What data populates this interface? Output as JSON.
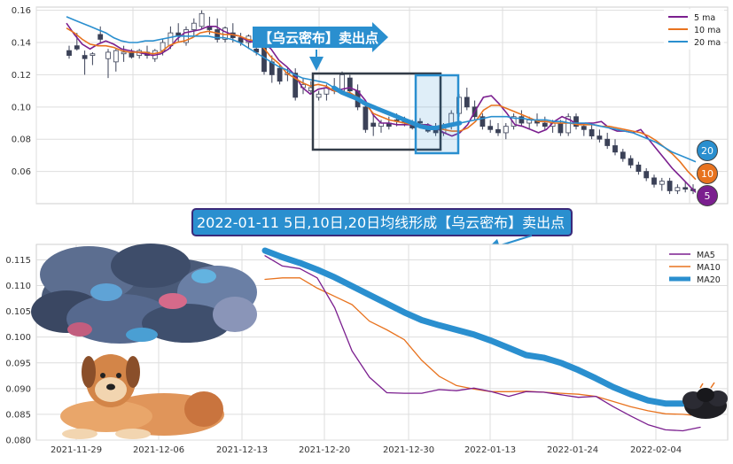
{
  "chart_data": [
    {
      "type": "line",
      "panel": "top",
      "description_kind": "candlestick with moving averages",
      "ylim": [
        0.04,
        0.162
      ],
      "yticks": [
        "0.06",
        "0.08",
        "0.10",
        "0.12",
        "0.14",
        "0.16"
      ],
      "ytick_values": [
        0.06,
        0.08,
        0.1,
        0.12,
        0.14,
        0.16
      ],
      "grid": true,
      "legend_position": "top-right",
      "legend": [
        "5 ma",
        "10 ma",
        "20 ma"
      ],
      "colors": {
        "ma5": "#7b1f8f",
        "ma10": "#e8731f",
        "ma20": "#2a8fcf",
        "candle_up": "#ffffff",
        "candle_down": "#3b4157"
      },
      "series": [
        {
          "name": "5 ma",
          "values": [
            0.152,
            0.145,
            0.139,
            0.136,
            0.139,
            0.141,
            0.139,
            0.136,
            0.135,
            0.134,
            0.133,
            0.132,
            0.133,
            0.136,
            0.142,
            0.146,
            0.147,
            0.148,
            0.15,
            0.15,
            0.147,
            0.145,
            0.144,
            0.141,
            0.14,
            0.14,
            0.136,
            0.129,
            0.125,
            0.12,
            0.112,
            0.108,
            0.111,
            0.112,
            0.11,
            0.111,
            0.112,
            0.11,
            0.104,
            0.095,
            0.09,
            0.09,
            0.089,
            0.089,
            0.089,
            0.089,
            0.089,
            0.087,
            0.084,
            0.082,
            0.084,
            0.089,
            0.098,
            0.106,
            0.107,
            0.102,
            0.096,
            0.089,
            0.088,
            0.086,
            0.084,
            0.086,
            0.091,
            0.094,
            0.092,
            0.089,
            0.09,
            0.09,
            0.091,
            0.087,
            0.085,
            0.085,
            0.084,
            0.086,
            0.08,
            0.074,
            0.068,
            0.062,
            0.057,
            0.052,
            0.047
          ]
        },
        {
          "name": "10 ma",
          "values": [
            0.149,
            0.146,
            0.142,
            0.139,
            0.138,
            0.138,
            0.137,
            0.135,
            0.134,
            0.134,
            0.134,
            0.133,
            0.134,
            0.138,
            0.14,
            0.141,
            0.143,
            0.146,
            0.147,
            0.146,
            0.145,
            0.145,
            0.144,
            0.142,
            0.141,
            0.137,
            0.131,
            0.127,
            0.121,
            0.118,
            0.115,
            0.113,
            0.114,
            0.113,
            0.11,
            0.109,
            0.109,
            0.106,
            0.102,
            0.096,
            0.094,
            0.092,
            0.091,
            0.09,
            0.089,
            0.089,
            0.088,
            0.087,
            0.086,
            0.085,
            0.085,
            0.087,
            0.091,
            0.098,
            0.101,
            0.101,
            0.099,
            0.097,
            0.095,
            0.093,
            0.091,
            0.091,
            0.09,
            0.09,
            0.09,
            0.089,
            0.089,
            0.089,
            0.088,
            0.088,
            0.087,
            0.086,
            0.085,
            0.084,
            0.082,
            0.079,
            0.075,
            0.071,
            0.066,
            0.06,
            0.055
          ]
        },
        {
          "name": "20 ma",
          "values": [
            0.156,
            0.154,
            0.152,
            0.15,
            0.148,
            0.146,
            0.143,
            0.141,
            0.14,
            0.14,
            0.141,
            0.141,
            0.142,
            0.143,
            0.144,
            0.144,
            0.144,
            0.144,
            0.144,
            0.143,
            0.143,
            0.142,
            0.14,
            0.137,
            0.134,
            0.131,
            0.128,
            0.125,
            0.123,
            0.12,
            0.118,
            0.117,
            0.116,
            0.115,
            0.112,
            0.109,
            0.107,
            0.105,
            0.102,
            0.1,
            0.098,
            0.096,
            0.094,
            0.092,
            0.09,
            0.088,
            0.087,
            0.087,
            0.088,
            0.089,
            0.09,
            0.091,
            0.092,
            0.093,
            0.094,
            0.094,
            0.094,
            0.093,
            0.093,
            0.092,
            0.092,
            0.092,
            0.091,
            0.091,
            0.09,
            0.09,
            0.09,
            0.089,
            0.088,
            0.087,
            0.086,
            0.085,
            0.084,
            0.082,
            0.08,
            0.078,
            0.075,
            0.072,
            0.07,
            0.068,
            0.066
          ]
        }
      ],
      "candles": [
        [
          0.135,
          0.138,
          0.13,
          0.132
        ],
        [
          0.138,
          0.146,
          0.135,
          0.136
        ],
        [
          0.132,
          0.135,
          0.12,
          0.13
        ],
        [
          0.132,
          0.134,
          0.126,
          0.133
        ],
        [
          0.145,
          0.15,
          0.14,
          0.142
        ],
        [
          0.13,
          0.136,
          0.118,
          0.134
        ],
        [
          0.128,
          0.136,
          0.122,
          0.135
        ],
        [
          0.133,
          0.138,
          0.128,
          0.134
        ],
        [
          0.134,
          0.136,
          0.13,
          0.131
        ],
        [
          0.132,
          0.136,
          0.13,
          0.135
        ],
        [
          0.134,
          0.138,
          0.13,
          0.132
        ],
        [
          0.13,
          0.136,
          0.128,
          0.135
        ],
        [
          0.135,
          0.142,
          0.132,
          0.14
        ],
        [
          0.138,
          0.15,
          0.136,
          0.146
        ],
        [
          0.146,
          0.152,
          0.14,
          0.144
        ],
        [
          0.14,
          0.15,
          0.138,
          0.148
        ],
        [
          0.148,
          0.155,
          0.144,
          0.152
        ],
        [
          0.15,
          0.16,
          0.148,
          0.158
        ],
        [
          0.15,
          0.156,
          0.145,
          0.148
        ],
        [
          0.148,
          0.155,
          0.14,
          0.142
        ],
        [
          0.142,
          0.15,
          0.14,
          0.149
        ],
        [
          0.146,
          0.152,
          0.14,
          0.143
        ],
        [
          0.143,
          0.146,
          0.138,
          0.14
        ],
        [
          0.14,
          0.145,
          0.136,
          0.144
        ],
        [
          0.136,
          0.14,
          0.132,
          0.134
        ],
        [
          0.138,
          0.142,
          0.12,
          0.122
        ],
        [
          0.128,
          0.132,
          0.115,
          0.12
        ],
        [
          0.124,
          0.126,
          0.114,
          0.116
        ],
        [
          0.12,
          0.124,
          0.116,
          0.121
        ],
        [
          0.121,
          0.124,
          0.104,
          0.106
        ],
        [
          0.112,
          0.118,
          0.108,
          0.114
        ],
        [
          0.11,
          0.116,
          0.108,
          0.112
        ],
        [
          0.106,
          0.11,
          0.104,
          0.108
        ],
        [
          0.108,
          0.114,
          0.104,
          0.112
        ],
        [
          0.112,
          0.118,
          0.108,
          0.11
        ],
        [
          0.11,
          0.122,
          0.108,
          0.12
        ],
        [
          0.118,
          0.12,
          0.108,
          0.11
        ],
        [
          0.11,
          0.114,
          0.098,
          0.1
        ],
        [
          0.1,
          0.104,
          0.084,
          0.086
        ],
        [
          0.09,
          0.096,
          0.082,
          0.088
        ],
        [
          0.088,
          0.092,
          0.084,
          0.09
        ],
        [
          0.09,
          0.094,
          0.086,
          0.088
        ],
        [
          0.092,
          0.096,
          0.088,
          0.091
        ],
        [
          0.092,
          0.094,
          0.088,
          0.09
        ],
        [
          0.09,
          0.092,
          0.086,
          0.087
        ],
        [
          0.091,
          0.093,
          0.088,
          0.09
        ],
        [
          0.088,
          0.09,
          0.084,
          0.085
        ],
        [
          0.086,
          0.09,
          0.082,
          0.084
        ],
        [
          0.084,
          0.09,
          0.082,
          0.088
        ],
        [
          0.088,
          0.098,
          0.086,
          0.096
        ],
        [
          0.096,
          0.108,
          0.094,
          0.106
        ],
        [
          0.106,
          0.112,
          0.098,
          0.1
        ],
        [
          0.1,
          0.104,
          0.092,
          0.094
        ],
        [
          0.094,
          0.096,
          0.086,
          0.088
        ],
        [
          0.088,
          0.092,
          0.084,
          0.086
        ],
        [
          0.086,
          0.09,
          0.082,
          0.084
        ],
        [
          0.084,
          0.09,
          0.08,
          0.088
        ],
        [
          0.088,
          0.096,
          0.086,
          0.094
        ],
        [
          0.094,
          0.098,
          0.088,
          0.09
        ],
        [
          0.09,
          0.094,
          0.086,
          0.092
        ],
        [
          0.092,
          0.096,
          0.088,
          0.09
        ],
        [
          0.09,
          0.094,
          0.086,
          0.088
        ],
        [
          0.088,
          0.092,
          0.084,
          0.09
        ],
        [
          0.09,
          0.092,
          0.082,
          0.084
        ],
        [
          0.084,
          0.096,
          0.082,
          0.094
        ],
        [
          0.094,
          0.096,
          0.086,
          0.088
        ],
        [
          0.088,
          0.09,
          0.082,
          0.086
        ],
        [
          0.086,
          0.09,
          0.08,
          0.082
        ],
        [
          0.082,
          0.086,
          0.078,
          0.08
        ],
        [
          0.08,
          0.084,
          0.074,
          0.076
        ],
        [
          0.076,
          0.08,
          0.07,
          0.072
        ],
        [
          0.072,
          0.074,
          0.066,
          0.068
        ],
        [
          0.068,
          0.07,
          0.062,
          0.064
        ],
        [
          0.064,
          0.066,
          0.058,
          0.06
        ],
        [
          0.06,
          0.062,
          0.054,
          0.056
        ],
        [
          0.056,
          0.058,
          0.05,
          0.052
        ],
        [
          0.052,
          0.056,
          0.048,
          0.054
        ],
        [
          0.054,
          0.056,
          0.046,
          0.048
        ],
        [
          0.048,
          0.052,
          0.046,
          0.05
        ],
        [
          0.05,
          0.054,
          0.047,
          0.049
        ],
        [
          0.049,
          0.052,
          0.046,
          0.048
        ]
      ],
      "badges": [
        {
          "label": "20",
          "color": "#2a8fcf",
          "value": 0.066
        },
        {
          "label": "10",
          "color": "#e8731f",
          "value": 0.055
        },
        {
          "label": "5",
          "color": "#7b1f8f",
          "value": 0.047
        }
      ]
    },
    {
      "type": "line",
      "panel": "bottom",
      "ylim": [
        0.08,
        0.118
      ],
      "yticks": [
        "0.080",
        "0.085",
        "0.090",
        "0.095",
        "0.100",
        "0.105",
        "0.110",
        "0.115"
      ],
      "ytick_values": [
        0.08,
        0.085,
        0.09,
        0.095,
        0.1,
        0.105,
        0.11,
        0.115
      ],
      "xticks": [
        "2021-11-29",
        "2021-12-06",
        "2021-12-13",
        "2021-12-20",
        "2021-12-30",
        "2022-01-13",
        "2022-01-24",
        "2022-02-04"
      ],
      "grid": true,
      "legend_position": "top-right",
      "legend": [
        "MA5",
        "MA10",
        "MA20"
      ],
      "colors": {
        "MA5": "#7b1f8f",
        "MA10": "#e8731f",
        "MA20": "#2a8fcf"
      },
      "series": [
        {
          "name": "MA5",
          "values": [
            0.1158,
            0.1138,
            0.1133,
            0.1115,
            0.1057,
            0.0973,
            0.0922,
            0.0892,
            0.0891,
            0.0891,
            0.0898,
            0.0896,
            0.0901,
            0.0894,
            0.0885,
            0.0894,
            0.0893,
            0.0888,
            0.0883,
            0.0885,
            0.0865,
            0.0847,
            0.083,
            0.082,
            0.0818,
            0.0825
          ]
        },
        {
          "name": "MA10",
          "values": [
            0.1112,
            0.1115,
            0.1115,
            0.1095,
            0.1079,
            0.1063,
            0.1031,
            0.1014,
            0.0995,
            0.0955,
            0.0924,
            0.0906,
            0.0899,
            0.0894,
            0.0894,
            0.0895,
            0.0893,
            0.0891,
            0.0889,
            0.0885,
            0.0875,
            0.0865,
            0.0857,
            0.0851,
            0.085,
            0.0847
          ]
        },
        {
          "name": "MA20",
          "values": [
            0.1168,
            0.1155,
            0.1144,
            0.1131,
            0.1116,
            0.1099,
            0.1082,
            0.1065,
            0.1048,
            0.1033,
            0.1023,
            0.1014,
            0.1005,
            0.0993,
            0.0979,
            0.0965,
            0.096,
            0.095,
            0.0936,
            0.092,
            0.0903,
            0.0889,
            0.0877,
            0.0871,
            0.0871,
            0.0873
          ]
        }
      ]
    }
  ],
  "annotations": {
    "top_callout": "【乌云密布】卖出点",
    "banner": "2022-01-11 5日,10日,20日均线形成【乌云密布】卖出点"
  },
  "icons": [
    "dark-cloud-icon",
    "dog-icon",
    "small-dark-cloud-icon"
  ]
}
